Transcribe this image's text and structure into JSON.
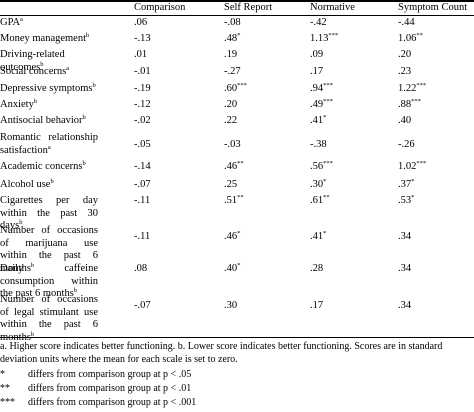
{
  "header": {
    "blank": "",
    "columns": [
      "Comparison",
      "Self Report",
      "Normative",
      "Symptom Count"
    ]
  },
  "rows": [
    {
      "label": "GPA",
      "sup": "a",
      "values": [
        ".06",
        "-.08",
        "-.42",
        "-.44"
      ],
      "stars": [
        "",
        "",
        "",
        ""
      ]
    },
    {
      "label": "Money management",
      "sup": "b",
      "values": [
        "-.13",
        ".48",
        "1.13",
        "1.06"
      ],
      "stars": [
        "",
        "*",
        "***",
        "**"
      ]
    },
    {
      "label": "Driving-related outcomes",
      "sup": "b",
      "values": [
        ".01",
        ".19",
        ".09",
        ".20"
      ],
      "stars": [
        "",
        "",
        "",
        ""
      ]
    },
    {
      "label": "Social concerns",
      "sup": "a",
      "values": [
        "-.01",
        "-.27",
        ".17",
        ".23"
      ],
      "stars": [
        "",
        "",
        "",
        ""
      ]
    },
    {
      "label": "Depressive symptoms",
      "sup": "b",
      "values": [
        "-.19",
        ".60",
        ".94",
        "1.22"
      ],
      "stars": [
        "",
        "***",
        "***",
        "***"
      ]
    },
    {
      "label": "Anxiety",
      "sup": "b",
      "values": [
        "-.12",
        ".20",
        ".49",
        ".88"
      ],
      "stars": [
        "",
        "",
        "***",
        "***"
      ]
    },
    {
      "label": "Antisocial behavior",
      "sup": "b",
      "values": [
        "-.02",
        ".22",
        ".41",
        ".40"
      ],
      "stars": [
        "",
        "",
        "*",
        ""
      ]
    },
    {
      "label": "Romantic relationship satisfaction",
      "sup": "a",
      "values": [
        "-.05",
        "-.03",
        "-.38",
        "-.26"
      ],
      "stars": [
        "",
        "",
        "",
        ""
      ]
    },
    {
      "label": "Academic concerns",
      "sup": "b",
      "values": [
        "-.14",
        ".46",
        ".56",
        "1.02"
      ],
      "stars": [
        "",
        "**",
        "***",
        "***"
      ]
    },
    {
      "label": "Alcohol use",
      "sup": "b",
      "values": [
        "-.07",
        ".25",
        ".30",
        ".37"
      ],
      "stars": [
        "",
        "",
        "*",
        "*"
      ]
    },
    {
      "label": "Cigarettes per day within the past 30 days",
      "sup": "b",
      "values": [
        "-.11",
        ".51",
        ".61",
        ".53"
      ],
      "stars": [
        "",
        "**",
        "**",
        "*"
      ]
    },
    {
      "label": "Number of occasions of marijuana use within the past 6 months",
      "sup": "b",
      "values": [
        "-.11",
        ".46",
        ".41",
        ".34"
      ],
      "stars": [
        "",
        "*",
        "*",
        ""
      ]
    },
    {
      "label": "Daily caffeine consumption within the past 6 months",
      "sup": "b",
      "values": [
        ".08",
        ".40",
        ".28",
        ".34"
      ],
      "stars": [
        "",
        "*",
        "",
        ""
      ]
    },
    {
      "label": "Number of occasions of legal stimulant use within the past 6 months",
      "sup": "b",
      "values": [
        "-.07",
        ".30",
        ".17",
        ".34"
      ],
      "stars": [
        "",
        "",
        "",
        ""
      ]
    }
  ],
  "notes": {
    "general": "a. Higher score indicates better functioning. b. Lower score indicates better functioning. Scores are in standard deviation units where the mean for each scale is set to zero.",
    "significance": [
      {
        "mark": "*",
        "text": "differs from comparison group at p < .05"
      },
      {
        "mark": "**",
        "text": "differs from comparison group at p < .01"
      },
      {
        "mark": "***",
        "text": "differs from comparison group at p < .001"
      }
    ]
  }
}
